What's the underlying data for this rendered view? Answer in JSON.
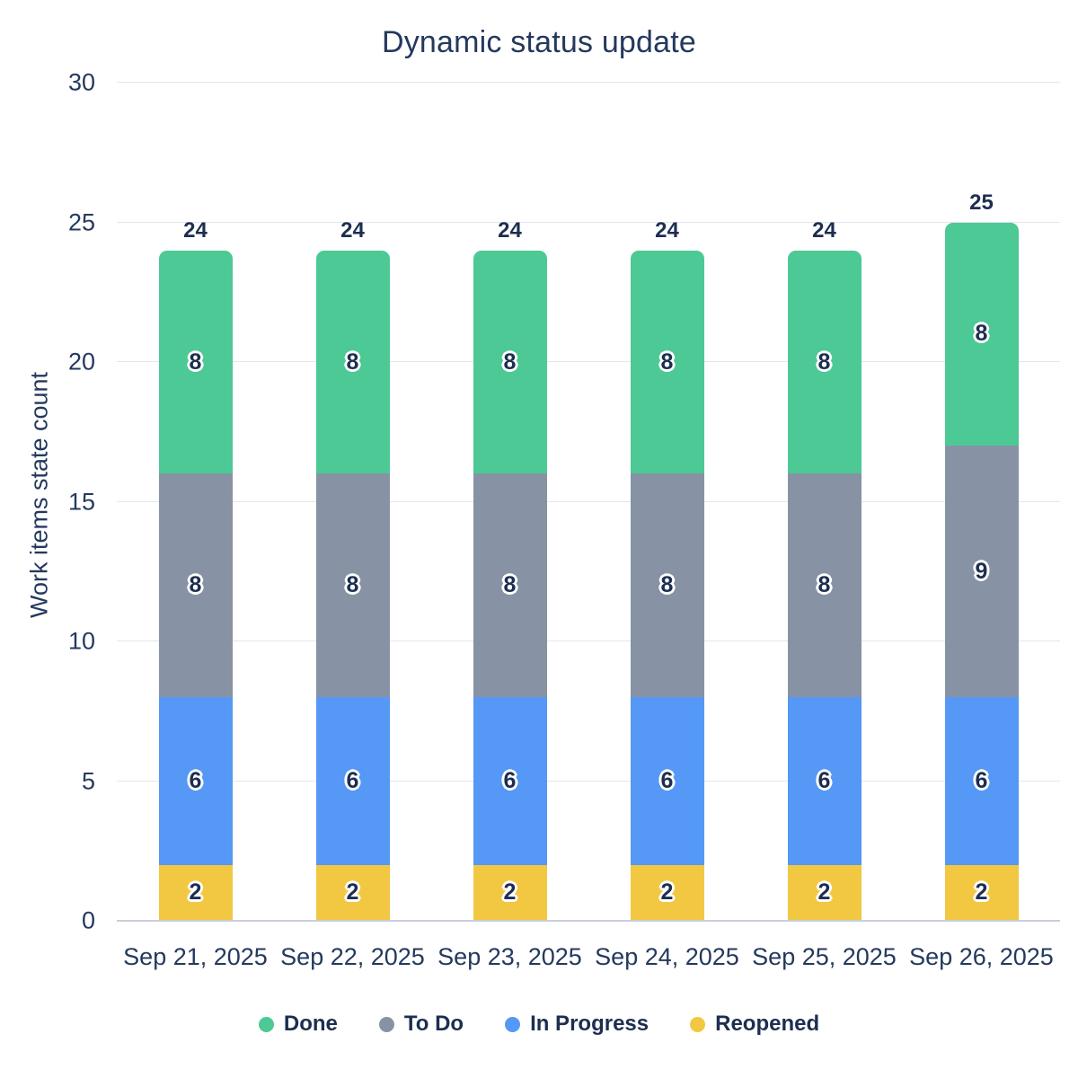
{
  "title": "Dynamic status update",
  "chart_data": {
    "type": "bar",
    "stacked": true,
    "title": "Dynamic status update",
    "xlabel": "",
    "ylabel": "Work items state count",
    "ylim": [
      0,
      30
    ],
    "yticks": [
      0,
      5,
      10,
      15,
      20,
      25,
      30
    ],
    "grid": true,
    "categories": [
      "Sep 21, 2025",
      "Sep 22, 2025",
      "Sep 23, 2025",
      "Sep 24, 2025",
      "Sep 25, 2025",
      "Sep 26, 2025"
    ],
    "series": [
      {
        "name": "Reopened",
        "color": "#F2C843",
        "values": [
          2,
          2,
          2,
          2,
          2,
          2
        ]
      },
      {
        "name": "In Progress",
        "color": "#5598F6",
        "values": [
          6,
          6,
          6,
          6,
          6,
          6
        ]
      },
      {
        "name": "To Do",
        "color": "#8793A4",
        "values": [
          8,
          8,
          8,
          8,
          8,
          9
        ]
      },
      {
        "name": "Done",
        "color": "#4CC994",
        "values": [
          8,
          8,
          8,
          8,
          8,
          8
        ]
      }
    ],
    "stack_order": "bottom-to-top",
    "totals": [
      24,
      24,
      24,
      24,
      24,
      25
    ],
    "legend_position": "bottom",
    "legend": [
      {
        "label": "Done",
        "color": "#4CC994"
      },
      {
        "label": "To Do",
        "color": "#8793A4"
      },
      {
        "label": "In Progress",
        "color": "#5598F6"
      },
      {
        "label": "Reopened",
        "color": "#F2C843"
      }
    ]
  },
  "theme": {
    "text_color": "#24395E",
    "text_bold_color": "#1D2E50",
    "gridline_color": "#E3E6EB",
    "axis_line_color": "#C9CEDA",
    "background": "#ffffff"
  }
}
